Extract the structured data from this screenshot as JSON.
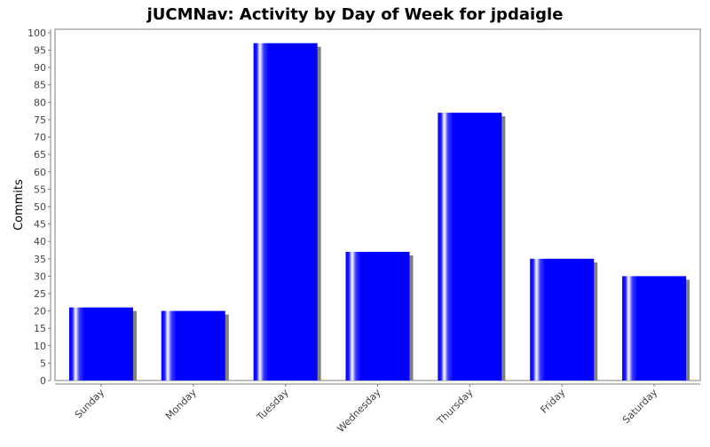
{
  "chart_data": {
    "type": "bar",
    "title": "jUCMNav: Activity by Day of Week for jpdaigle",
    "xlabel": "",
    "ylabel": "Commits",
    "categories": [
      "Sunday",
      "Monday",
      "Tuesday",
      "Wednesday",
      "Thursday",
      "Friday",
      "Saturday"
    ],
    "values": [
      21,
      20,
      97,
      37,
      77,
      35,
      30
    ],
    "ylim": [
      0,
      101
    ],
    "yticks": [
      0,
      5,
      10,
      15,
      20,
      25,
      30,
      35,
      40,
      45,
      50,
      55,
      60,
      65,
      70,
      75,
      80,
      85,
      90,
      95,
      100
    ],
    "grid": false,
    "legend": "none",
    "colors": {
      "bar": "#0000ff",
      "bar_shadow": "#808080",
      "axis": "#808080",
      "tick_text": "#444444"
    }
  }
}
